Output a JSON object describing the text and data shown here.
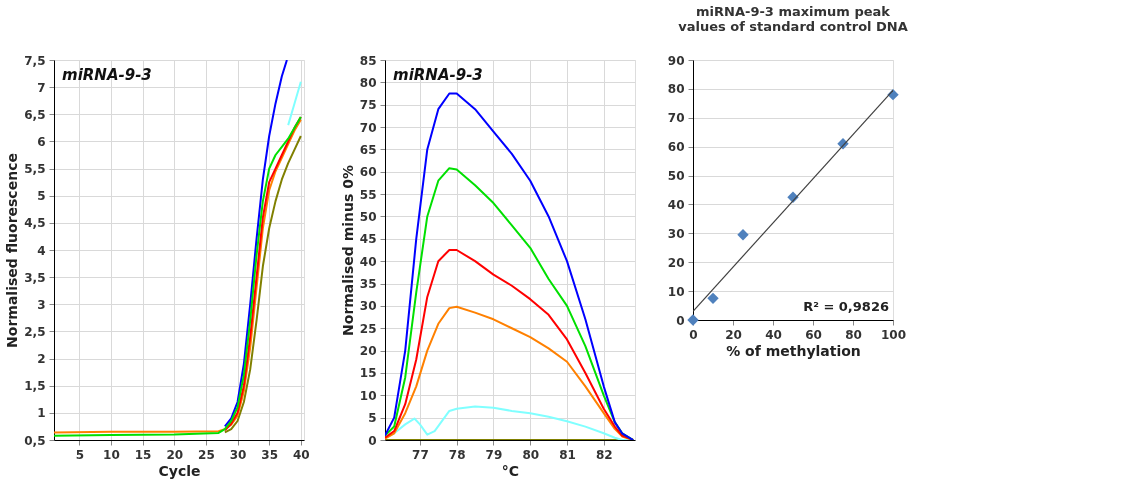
{
  "chart_data": [
    {
      "type": "line",
      "xlabel": "Cycle",
      "ylabel": "Normalised fluorescence",
      "annotations": [
        "miRNA-9-3"
      ],
      "xlim": [
        1,
        40.5
      ],
      "xticks": [
        5,
        10,
        15,
        20,
        25,
        30,
        35,
        40
      ],
      "ylim": [
        0.5,
        7.5
      ],
      "yticks": [
        {
          "value": 0.5,
          "label": "0,5"
        },
        1,
        {
          "value": 1.5,
          "label": "1,5"
        },
        2,
        {
          "value": 2.5,
          "label": "2,5"
        },
        3,
        {
          "value": 3.5,
          "label": "3,5"
        },
        4,
        {
          "value": 4.5,
          "label": "4,5"
        },
        5,
        {
          "value": 5.5,
          "label": "5,5"
        },
        6,
        {
          "value": 6.5,
          "label": "6,5"
        },
        7,
        {
          "value": 7.5,
          "label": "7,5"
        }
      ],
      "grid": true,
      "marker": "none",
      "line_style": "solid",
      "series": [
        {
          "color": "#808000",
          "x": [
            28,
            29,
            30,
            31,
            32,
            33,
            34,
            35,
            36,
            37,
            38,
            39,
            40
          ],
          "values": [
            0.64,
            0.7,
            0.85,
            1.2,
            1.8,
            2.7,
            3.7,
            4.4,
            4.9,
            5.3,
            5.6,
            5.85,
            6.1
          ]
        },
        {
          "color": "#80ffff",
          "x": [
            38,
            39,
            40
          ],
          "values": [
            6.3,
            6.7,
            7.1
          ]
        },
        {
          "color": "#ff8000",
          "x": [
            1,
            10,
            20,
            27,
            28,
            29,
            30,
            31,
            32,
            33,
            34,
            35,
            36,
            37,
            38,
            39,
            40
          ],
          "values": [
            0.64,
            0.65,
            0.65,
            0.66,
            0.7,
            0.78,
            0.95,
            1.4,
            2.2,
            3.3,
            4.4,
            5.1,
            5.45,
            5.7,
            5.95,
            6.2,
            6.4
          ]
        },
        {
          "color": "#ff0000",
          "x": [
            28,
            29,
            30,
            31,
            32,
            33,
            34,
            35,
            36,
            37,
            38,
            39,
            40
          ],
          "values": [
            0.68,
            0.8,
            1.0,
            1.5,
            2.4,
            3.5,
            4.6,
            5.25,
            5.5,
            5.75,
            6.0,
            6.25,
            6.45
          ]
        },
        {
          "color": "#0000ff",
          "x": [
            28,
            29,
            30,
            31,
            32,
            33,
            34,
            35,
            36,
            37,
            37.8
          ],
          "values": [
            0.75,
            0.9,
            1.2,
            1.9,
            3.0,
            4.2,
            5.3,
            6.1,
            6.7,
            7.2,
            7.5
          ]
        },
        {
          "color": "#00e000",
          "x": [
            1,
            10,
            20,
            27,
            28,
            29,
            30,
            31,
            32,
            33,
            34,
            35,
            36,
            37,
            38,
            39,
            40
          ],
          "values": [
            0.58,
            0.59,
            0.6,
            0.63,
            0.7,
            0.85,
            1.1,
            1.7,
            2.7,
            3.9,
            4.9,
            5.5,
            5.75,
            5.9,
            6.05,
            6.25,
            6.45
          ]
        }
      ]
    },
    {
      "type": "line",
      "xlabel": "°C",
      "ylabel": "Normalised minus 0%",
      "annotations": [
        "miRNA-9-3"
      ],
      "xlim": [
        76.05,
        82.85
      ],
      "xticks": [
        77,
        78,
        79,
        80,
        81,
        82
      ],
      "ylim": [
        0,
        85
      ],
      "yticks": [
        0,
        5,
        10,
        15,
        20,
        25,
        30,
        35,
        40,
        45,
        50,
        55,
        60,
        65,
        70,
        75,
        80,
        85
      ],
      "grid": true,
      "marker": "none",
      "line_style": "solid",
      "series": [
        {
          "color": "#808000",
          "x": [
            76.05,
            82.8
          ],
          "values": [
            0,
            0
          ]
        },
        {
          "color": "#80ffff",
          "x": [
            76.05,
            76.3,
            76.6,
            76.85,
            77.0,
            77.2,
            77.4,
            77.8,
            78.0,
            78.5,
            79.0,
            79.5,
            80.0,
            80.5,
            81.0,
            81.5,
            82.0,
            82.3,
            82.5,
            82.8
          ],
          "values": [
            0.5,
            1.5,
            3.5,
            4.8,
            3.5,
            1.2,
            2.0,
            6.5,
            7.0,
            7.5,
            7.2,
            6.5,
            6.0,
            5.2,
            4.2,
            3.0,
            1.5,
            0.5,
            0,
            0
          ]
        },
        {
          "color": "#ff8000",
          "x": [
            76.05,
            76.3,
            76.6,
            76.9,
            77.2,
            77.5,
            77.8,
            78.0,
            78.5,
            79.0,
            79.5,
            80.0,
            80.5,
            81.0,
            81.5,
            82.0,
            82.3,
            82.5,
            82.8
          ],
          "values": [
            0.3,
            1.5,
            6,
            12,
            20,
            26,
            29.5,
            29.8,
            28.5,
            27,
            25,
            23,
            20.5,
            17.5,
            12,
            6,
            2.5,
            0.8,
            0
          ]
        },
        {
          "color": "#ff0000",
          "x": [
            76.05,
            76.3,
            76.6,
            76.9,
            77.2,
            77.5,
            77.8,
            78.0,
            78.5,
            79.0,
            79.5,
            80.0,
            80.5,
            81.0,
            81.5,
            82.0,
            82.3,
            82.5,
            82.8
          ],
          "values": [
            0.5,
            2,
            8,
            18,
            32,
            40,
            42.5,
            42.5,
            40,
            37,
            34.5,
            31.5,
            28,
            22.5,
            15,
            7,
            3,
            1,
            0
          ]
        },
        {
          "color": "#00e000",
          "x": [
            76.05,
            76.3,
            76.6,
            76.9,
            77.2,
            77.5,
            77.8,
            78.0,
            78.5,
            79.0,
            79.5,
            80.0,
            80.5,
            81.0,
            81.5,
            82.0,
            82.3,
            82.5,
            82.8
          ],
          "values": [
            1,
            3,
            14,
            33,
            50,
            58,
            60.8,
            60.5,
            57,
            53,
            48,
            43,
            36,
            30,
            21,
            10,
            4,
            1.5,
            0
          ]
        },
        {
          "color": "#0000ff",
          "x": [
            76.05,
            76.3,
            76.6,
            76.9,
            77.2,
            77.5,
            77.8,
            78.0,
            78.5,
            79.0,
            79.5,
            80.0,
            80.5,
            81.0,
            81.5,
            82.0,
            82.3,
            82.5,
            82.8
          ],
          "values": [
            1,
            5,
            20,
            45,
            65,
            74,
            77.5,
            77.5,
            74,
            69,
            64,
            58,
            50,
            40,
            27,
            12,
            4,
            1.5,
            0
          ]
        }
      ]
    },
    {
      "type": "scatter",
      "title": "miRNA-9-3 maximum peak\nvalues of standard control DNA",
      "xlabel": "% of methylation",
      "annotations": [
        "R² = 0,9826"
      ],
      "xlim": [
        0,
        100
      ],
      "xticks": [
        0,
        20,
        40,
        60,
        80,
        100
      ],
      "ylim": [
        0,
        90
      ],
      "yticks": [
        0,
        10,
        20,
        30,
        40,
        50,
        60,
        70,
        80,
        90
      ],
      "grid": "y",
      "marker": "diamond",
      "series": [
        {
          "type": "scatter",
          "color": "#4f81bd",
          "x": [
            0,
            10,
            25,
            50,
            75,
            100
          ],
          "values": [
            0,
            7.5,
            29.5,
            42.5,
            61,
            78
          ]
        },
        {
          "type": "line",
          "marker": "none",
          "color": "#404040",
          "x": [
            0,
            100
          ],
          "values": [
            3,
            79.5
          ]
        }
      ]
    }
  ]
}
